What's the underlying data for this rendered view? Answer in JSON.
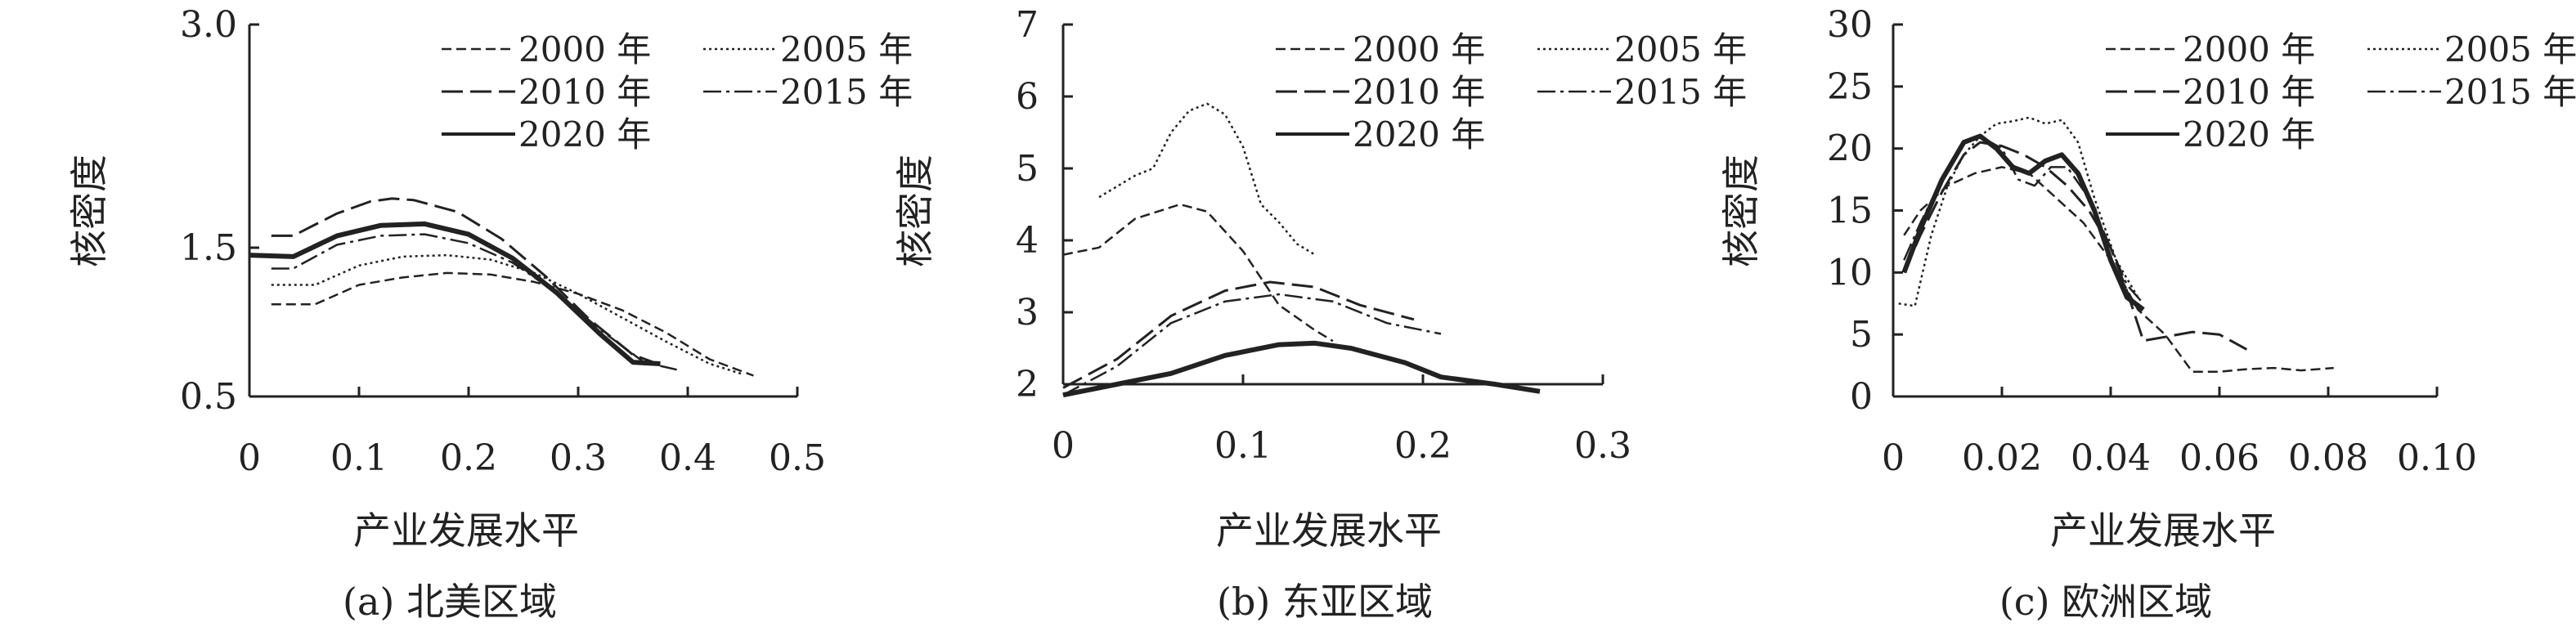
{
  "chart_data": [
    {
      "type": "line",
      "caption": "(a) 北美区域",
      "xlabel": "产业发展水平",
      "ylabel": "核密度",
      "xlim": [
        0,
        0.5
      ],
      "ylim": [
        0.5,
        3.0
      ],
      "xticks": [
        0,
        0.1,
        0.2,
        0.3,
        0.4,
        0.5
      ],
      "xtick_labels": [
        "0",
        "0.1",
        "0.2",
        "0.3",
        "0.4",
        "0.5"
      ],
      "yticks": [
        0.5,
        1.5,
        3.0
      ],
      "ytick_labels": [
        "0.5",
        "1.5",
        "3.0"
      ],
      "grid": false,
      "legend_position": "top-right",
      "series": [
        {
          "name": "2000 年",
          "style": "short-dash",
          "x": [
            0.02,
            0.06,
            0.1,
            0.14,
            0.18,
            0.22,
            0.26,
            0.3,
            0.34,
            0.38,
            0.42,
            0.46
          ],
          "y": [
            1.12,
            1.12,
            1.25,
            1.3,
            1.33,
            1.32,
            1.27,
            1.19,
            1.08,
            0.93,
            0.75,
            0.64
          ]
        },
        {
          "name": "2005 年",
          "style": "dot",
          "x": [
            0.02,
            0.06,
            0.1,
            0.14,
            0.18,
            0.22,
            0.26,
            0.3,
            0.34,
            0.38,
            0.42,
            0.45
          ],
          "y": [
            1.25,
            1.25,
            1.38,
            1.44,
            1.45,
            1.42,
            1.33,
            1.19,
            1.03,
            0.87,
            0.72,
            0.65
          ]
        },
        {
          "name": "2010 年",
          "style": "long-dash",
          "x": [
            0.02,
            0.04,
            0.08,
            0.11,
            0.13,
            0.15,
            0.19,
            0.23,
            0.27,
            0.31,
            0.35,
            0.38
          ],
          "y": [
            1.58,
            1.58,
            1.73,
            1.81,
            1.83,
            1.82,
            1.74,
            1.56,
            1.31,
            1.02,
            0.78,
            0.7
          ]
        },
        {
          "name": "2015 年",
          "style": "dash-dot",
          "x": [
            0.02,
            0.04,
            0.08,
            0.12,
            0.16,
            0.2,
            0.24,
            0.28,
            0.32,
            0.36,
            0.39
          ],
          "y": [
            1.36,
            1.36,
            1.52,
            1.58,
            1.59,
            1.53,
            1.4,
            1.2,
            0.95,
            0.73,
            0.68
          ]
        },
        {
          "name": "2020 年",
          "style": "solid",
          "x": [
            0,
            0.04,
            0.08,
            0.12,
            0.16,
            0.2,
            0.24,
            0.28,
            0.32,
            0.35,
            0.375
          ],
          "y": [
            1.45,
            1.44,
            1.58,
            1.65,
            1.66,
            1.59,
            1.43,
            1.2,
            0.92,
            0.73,
            0.72
          ]
        }
      ]
    },
    {
      "type": "line",
      "caption": "(b) 东亚区域",
      "xlabel": "产业发展水平",
      "ylabel": "核密度",
      "xlim": [
        0,
        0.3
      ],
      "ylim": [
        2,
        7
      ],
      "xticks": [
        0,
        0.1,
        0.2,
        0.3
      ],
      "xtick_labels": [
        "0",
        "0.1",
        "0.2",
        "0.3"
      ],
      "yticks": [
        2,
        3,
        4,
        5,
        6,
        7
      ],
      "ytick_labels": [
        "2",
        "3",
        "4",
        "5",
        "6",
        "7"
      ],
      "grid": false,
      "legend_position": "top-right",
      "series": [
        {
          "name": "2000 年",
          "style": "short-dash",
          "x": [
            0,
            0.02,
            0.04,
            0.065,
            0.08,
            0.1,
            0.12,
            0.14,
            0.15
          ],
          "y": [
            3.8,
            3.9,
            4.3,
            4.5,
            4.4,
            3.85,
            3.1,
            2.75,
            2.6
          ]
        },
        {
          "name": "2005 年",
          "style": "dot",
          "x": [
            0.02,
            0.04,
            0.05,
            0.06,
            0.07,
            0.08,
            0.09,
            0.1,
            0.11,
            0.12,
            0.13,
            0.14
          ],
          "y": [
            4.6,
            4.9,
            5.0,
            5.5,
            5.8,
            5.9,
            5.75,
            5.3,
            4.5,
            4.25,
            3.95,
            3.8
          ]
        },
        {
          "name": "2010 年",
          "style": "long-dash",
          "x": [
            0,
            0.03,
            0.06,
            0.09,
            0.115,
            0.14,
            0.165,
            0.195
          ],
          "y": [
            1.95,
            2.35,
            2.95,
            3.3,
            3.42,
            3.35,
            3.1,
            2.9
          ]
        },
        {
          "name": "2015 年",
          "style": "dash-dot",
          "x": [
            0,
            0.03,
            0.06,
            0.09,
            0.12,
            0.15,
            0.18,
            0.21
          ],
          "y": [
            1.85,
            2.25,
            2.85,
            3.15,
            3.25,
            3.15,
            2.85,
            2.7
          ]
        },
        {
          "name": "2020 年",
          "style": "solid",
          "x": [
            0,
            0.03,
            0.06,
            0.09,
            0.12,
            0.14,
            0.16,
            0.19,
            0.21,
            0.24,
            0.265
          ],
          "y": [
            1.85,
            2.0,
            2.15,
            2.4,
            2.55,
            2.57,
            2.5,
            2.3,
            2.1,
            2.0,
            1.9
          ]
        }
      ]
    },
    {
      "type": "line",
      "caption": "(c) 欧洲区域",
      "xlabel": "产业发展水平",
      "ylabel": "核密度",
      "xlim": [
        0,
        0.1
      ],
      "ylim": [
        0,
        30
      ],
      "xticks": [
        0,
        0.02,
        0.04,
        0.06,
        0.08,
        0.1
      ],
      "xtick_labels": [
        "0",
        "0.02",
        "0.04",
        "0.06",
        "0.08",
        "0.10"
      ],
      "yticks": [
        0,
        5,
        10,
        15,
        20,
        25,
        30
      ],
      "ytick_labels": [
        "0",
        "5",
        "10",
        "15",
        "20",
        "25",
        "30"
      ],
      "grid": false,
      "legend_position": "top-right",
      "series": [
        {
          "name": "2000 年",
          "style": "short-dash",
          "x": [
            0.002,
            0.005,
            0.01,
            0.015,
            0.02,
            0.025,
            0.03,
            0.035,
            0.04,
            0.045,
            0.05,
            0.055,
            0.06,
            0.065,
            0.07,
            0.075,
            0.081
          ],
          "y": [
            13,
            15,
            17,
            18,
            18.5,
            18,
            16,
            14,
            11,
            7,
            5,
            2,
            2,
            2.2,
            2.3,
            2.1,
            2.3
          ]
        },
        {
          "name": "2005 年",
          "style": "dot",
          "x": [
            0.001,
            0.004,
            0.007,
            0.01,
            0.013,
            0.016,
            0.019,
            0.022,
            0.025,
            0.028,
            0.031,
            0.034,
            0.037,
            0.041,
            0.045
          ],
          "y": [
            7.5,
            7.3,
            13,
            17,
            19.5,
            21,
            22,
            22.2,
            22.5,
            22,
            22.3,
            20.5,
            16,
            11,
            8
          ]
        },
        {
          "name": "2010 年",
          "style": "long-dash",
          "x": [
            0.002,
            0.005,
            0.009,
            0.013,
            0.016,
            0.02,
            0.024,
            0.028,
            0.032,
            0.036,
            0.04,
            0.043,
            0.046,
            0.05,
            0.055,
            0.06,
            0.065
          ],
          "y": [
            10,
            13,
            16.5,
            19.5,
            20.5,
            20.2,
            19.5,
            18.5,
            17,
            15,
            12,
            8.5,
            4.5,
            4.8,
            5.2,
            5.0,
            3.8
          ]
        },
        {
          "name": "2015 年",
          "style": "dash-dot",
          "x": [
            0.002,
            0.005,
            0.009,
            0.013,
            0.016,
            0.02,
            0.023,
            0.026,
            0.029,
            0.032,
            0.036,
            0.04,
            0.043,
            0.046
          ],
          "y": [
            11,
            14,
            17.5,
            20.5,
            21,
            20,
            17.5,
            17,
            18.5,
            18.5,
            16,
            12,
            9,
            7.5
          ]
        },
        {
          "name": "2020 年",
          "style": "solid",
          "x": [
            0.002,
            0.005,
            0.009,
            0.013,
            0.016,
            0.019,
            0.022,
            0.025,
            0.028,
            0.031,
            0.034,
            0.037,
            0.04,
            0.043,
            0.046
          ],
          "y": [
            10,
            13.5,
            17.5,
            20.5,
            21,
            20,
            18.5,
            18,
            19,
            19.5,
            18,
            15,
            11,
            8,
            7
          ]
        }
      ]
    }
  ]
}
